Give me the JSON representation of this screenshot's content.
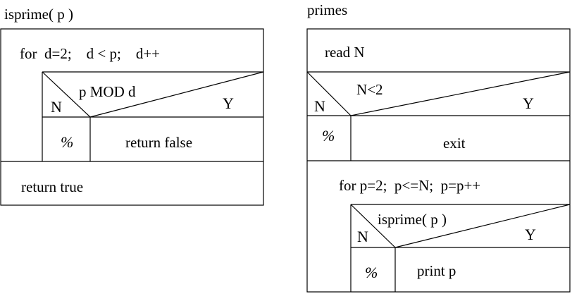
{
  "isprime": {
    "title": "isprime( p )",
    "loop": "for  d=2;    d < p;    d++",
    "condition": "p MOD d",
    "no_label": "N",
    "yes_label": "Y",
    "no_branch": "%",
    "yes_branch": "return false",
    "final": "return true"
  },
  "primes": {
    "title": "primes",
    "read": "read N",
    "condition": "N<2",
    "no_label": "N",
    "yes_label": "Y",
    "no_branch": "%",
    "yes_branch": "exit",
    "loop": "for p=2;  p<=N;  p=p++",
    "inner_condition": "isprime( p )",
    "inner_no_label": "N",
    "inner_yes_label": "Y",
    "inner_no_branch": "%",
    "inner_yes_branch": "print p"
  }
}
